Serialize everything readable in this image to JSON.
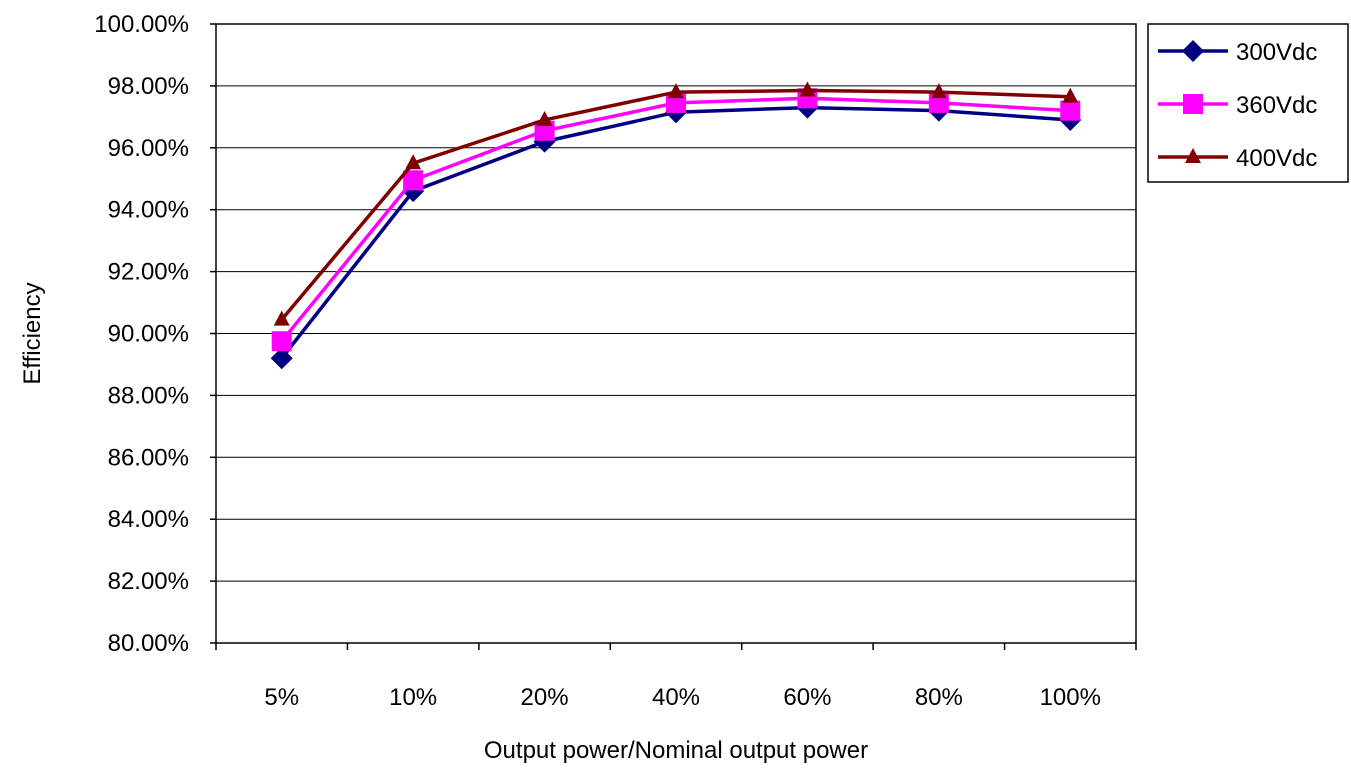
{
  "chart_data": {
    "type": "line",
    "categories": [
      "5%",
      "10%",
      "20%",
      "40%",
      "60%",
      "80%",
      "100%"
    ],
    "series": [
      {
        "name": "300Vdc",
        "color": "#000080",
        "marker": "diamond",
        "values": [
          89.2,
          94.6,
          96.2,
          97.15,
          97.3,
          97.2,
          96.9
        ]
      },
      {
        "name": "360Vdc",
        "color": "#FF00FF",
        "marker": "square",
        "values": [
          89.75,
          94.95,
          96.55,
          97.45,
          97.6,
          97.45,
          97.2
        ]
      },
      {
        "name": "400Vdc",
        "color": "#800000",
        "marker": "triangle",
        "values": [
          90.45,
          95.5,
          96.9,
          97.8,
          97.85,
          97.8,
          97.65
        ]
      }
    ],
    "xlabel": "Output power/Nominal output power",
    "ylabel": "Efficiency",
    "ylim": [
      80,
      100
    ],
    "yticks": [
      "80.00%",
      "82.00%",
      "84.00%",
      "86.00%",
      "88.00%",
      "90.00%",
      "92.00%",
      "94.00%",
      "96.00%",
      "98.00%",
      "100.00%"
    ],
    "grid": "horizontal",
    "legend_position": "right"
  }
}
